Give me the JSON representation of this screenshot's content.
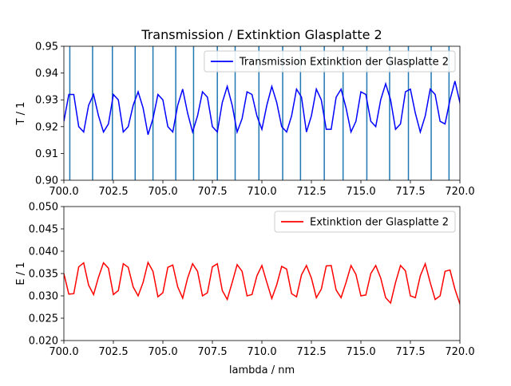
{
  "chart_data": [
    {
      "type": "line",
      "title": "Transmission / Extinktion Glasplatte 2",
      "xlabel": "",
      "ylabel": "T / 1",
      "xlim": [
        700,
        720
      ],
      "ylim": [
        0.9,
        0.95
      ],
      "x_ticks": [
        700,
        702.5,
        705,
        707.5,
        710,
        712.5,
        715,
        717.5,
        720
      ],
      "x_tick_labels": [
        "700.0",
        "702.5",
        "705.0",
        "707.5",
        "710.0",
        "712.5",
        "715.0",
        "717.5",
        "720.0"
      ],
      "y_ticks": [
        0.9,
        0.91,
        0.92,
        0.93,
        0.94,
        0.95
      ],
      "y_tick_labels": [
        "0.90",
        "0.91",
        "0.92",
        "0.93",
        "0.94",
        "0.95"
      ],
      "legend_position": "top-right",
      "grid": false,
      "series": [
        {
          "name": "Transmission Extinktion der Glasplatte 2",
          "color": "#0000ff",
          "x_start": 700,
          "x_step": 0.25,
          "values": [
            0.922,
            0.932,
            0.932,
            0.92,
            0.918,
            0.928,
            0.932,
            0.924,
            0.918,
            0.921,
            0.932,
            0.93,
            0.918,
            0.92,
            0.928,
            0.933,
            0.927,
            0.917,
            0.923,
            0.932,
            0.93,
            0.92,
            0.918,
            0.928,
            0.934,
            0.925,
            0.918,
            0.924,
            0.933,
            0.931,
            0.92,
            0.918,
            0.929,
            0.935,
            0.928,
            0.918,
            0.923,
            0.933,
            0.932,
            0.924,
            0.919,
            0.928,
            0.935,
            0.929,
            0.92,
            0.918,
            0.924,
            0.934,
            0.931,
            0.918,
            0.924,
            0.934,
            0.93,
            0.919,
            0.919,
            0.931,
            0.934,
            0.927,
            0.918,
            0.922,
            0.933,
            0.932,
            0.922,
            0.92,
            0.93,
            0.936,
            0.93,
            0.919,
            0.921,
            0.933,
            0.934,
            0.925,
            0.918,
            0.924,
            0.934,
            0.932,
            0.922,
            0.921,
            0.93,
            0.937,
            0.929,
            0.918,
            0.922,
            0.935,
            0.935,
            0.926,
            0.922
          ]
        }
      ],
      "vlines": {
        "color": "#1f77b4",
        "x": [
          700.3,
          701.45,
          702.45,
          703.6,
          704.5,
          705.65,
          706.55,
          707.75,
          708.65,
          709.85,
          711.05,
          711.95,
          713.15,
          714.1,
          715.3,
          716.45,
          717.4,
          718.55,
          719.45
        ]
      }
    },
    {
      "type": "line",
      "title": "",
      "xlabel": "lambda / nm",
      "ylabel": "E / 1",
      "xlim": [
        700,
        720
      ],
      "ylim": [
        0.02,
        0.05
      ],
      "x_ticks": [
        700,
        702.5,
        705,
        707.5,
        710,
        712.5,
        715,
        717.5,
        720
      ],
      "x_tick_labels": [
        "700.0",
        "702.5",
        "705.0",
        "707.5",
        "710.0",
        "712.5",
        "715.0",
        "717.5",
        "720.0"
      ],
      "y_ticks": [
        0.02,
        0.025,
        0.03,
        0.035,
        0.04,
        0.045,
        0.05
      ],
      "y_tick_labels": [
        "0.020",
        "0.025",
        "0.030",
        "0.035",
        "0.040",
        "0.045",
        "0.050"
      ],
      "legend_position": "top-right",
      "grid": false,
      "series": [
        {
          "name": "Extinktion der Glasplatte 2",
          "color": "#ff0000",
          "x_start": 700,
          "x_step": 0.25,
          "values": [
            0.035,
            0.0304,
            0.0305,
            0.0365,
            0.0374,
            0.0324,
            0.0303,
            0.0342,
            0.0374,
            0.0362,
            0.0303,
            0.0312,
            0.0372,
            0.0364,
            0.032,
            0.03,
            0.033,
            0.0375,
            0.0355,
            0.0298,
            0.0307,
            0.0364,
            0.0369,
            0.032,
            0.0295,
            0.034,
            0.0372,
            0.0355,
            0.03,
            0.0307,
            0.0365,
            0.0372,
            0.0312,
            0.0292,
            0.033,
            0.037,
            0.0355,
            0.03,
            0.0303,
            0.0345,
            0.0368,
            0.033,
            0.0294,
            0.0325,
            0.0366,
            0.036,
            0.0305,
            0.0298,
            0.0347,
            0.0368,
            0.034,
            0.0296,
            0.0315,
            0.0367,
            0.0368,
            0.0313,
            0.0296,
            0.033,
            0.0368,
            0.0348,
            0.03,
            0.0302,
            0.035,
            0.0368,
            0.034,
            0.0296,
            0.0284,
            0.033,
            0.0368,
            0.0356,
            0.03,
            0.0296,
            0.0345,
            0.0372,
            0.033,
            0.0292,
            0.03,
            0.0355,
            0.0358,
            0.0315,
            0.0282,
            0.033,
            0.037,
            0.0356,
            0.0294,
            0.0296,
            0.035
          ]
        }
      ]
    }
  ]
}
